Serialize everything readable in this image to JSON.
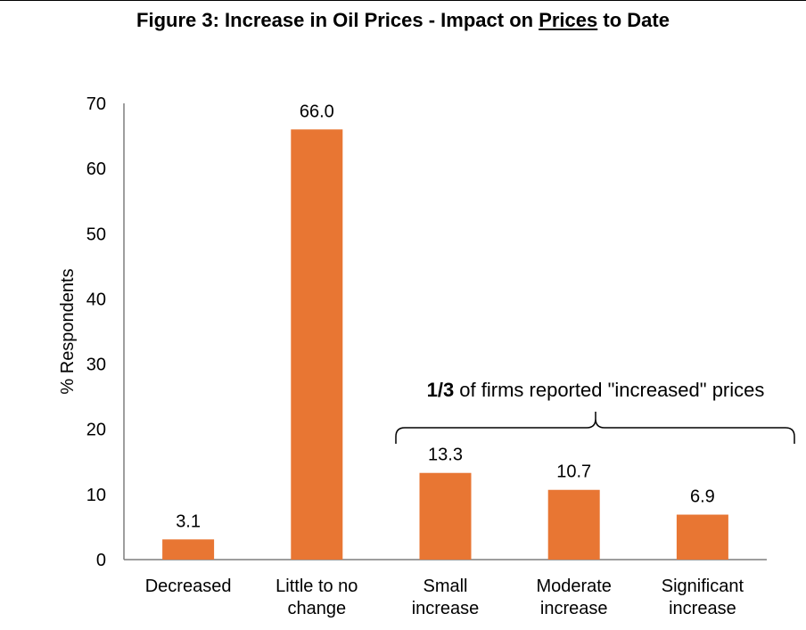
{
  "title": {
    "prefix": "Figure 3: Increase in Oil Prices - Impact on ",
    "underlined": "Prices",
    "suffix": " to Date"
  },
  "chart_data": {
    "type": "bar",
    "categories": [
      [
        "Decreased"
      ],
      [
        "Little to no",
        "change"
      ],
      [
        "Small",
        "increase"
      ],
      [
        "Moderate",
        "increase"
      ],
      [
        "Significant",
        "increase"
      ]
    ],
    "values": [
      3.1,
      66.0,
      13.3,
      10.7,
      6.9
    ],
    "value_labels": [
      "3.1",
      "66.0",
      "13.3",
      "10.7",
      "6.9"
    ],
    "xlabel": "",
    "ylabel": "% Respondents",
    "ylim": [
      0,
      70
    ],
    "yticks": [
      "0",
      "10",
      "20",
      "30",
      "40",
      "50",
      "60",
      "70"
    ],
    "bar_color": "#E87633",
    "grid": false,
    "annotation": {
      "bold": "1/3",
      "text": " of firms reported \"increased\" prices",
      "spans_categories": [
        2,
        4
      ]
    }
  }
}
